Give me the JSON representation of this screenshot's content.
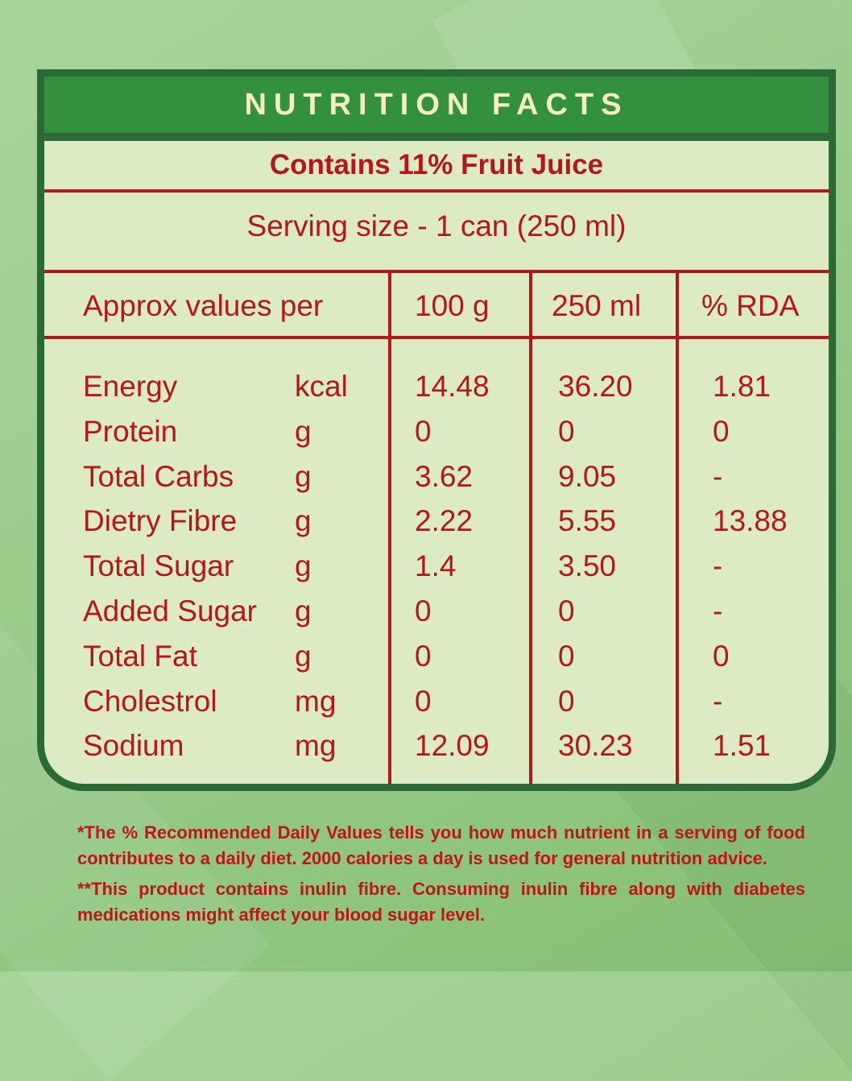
{
  "header": {
    "title": "NUTRITION FACTS"
  },
  "subtitle": "Contains 11% Fruit Juice",
  "serving": "Serving size - 1 can (250 ml)",
  "columns": {
    "label": "Approx values per",
    "c1": "100 g",
    "c2": "250 ml",
    "c3": "% RDA"
  },
  "rows": [
    {
      "name": "Energy",
      "unit": "kcal",
      "per100": "14.48",
      "per250": "36.20",
      "rda": "1.81"
    },
    {
      "name": "Protein",
      "unit": "g",
      "per100": "0",
      "per250": "0",
      "rda": "0"
    },
    {
      "name": "Total Carbs",
      "unit": "g",
      "per100": "3.62",
      "per250": "9.05",
      "rda": "-"
    },
    {
      "name": "Dietry Fibre",
      "unit": "g",
      "per100": "2.22",
      "per250": "5.55",
      "rda": "13.88"
    },
    {
      "name": "Total Sugar",
      "unit": "g",
      "per100": "1.4",
      "per250": "3.50",
      "rda": "-"
    },
    {
      "name": "Added Sugar",
      "unit": "g",
      "per100": "0",
      "per250": "0",
      "rda": "-"
    },
    {
      "name": "Total Fat",
      "unit": "g",
      "per100": "0",
      "per250": "0",
      "rda": "0"
    },
    {
      "name": "Cholestrol",
      "unit": "mg",
      "per100": "0",
      "per250": "0",
      "rda": "-"
    },
    {
      "name": "Sodium",
      "unit": "mg",
      "per100": "12.09",
      "per250": "30.23",
      "rda": "1.51"
    }
  ],
  "notes": {
    "note1": "*The % Recommended Daily Values tells you how much nutrient in a serving of food contributes to a daily diet. 2000 calories a day is used for general nutrition advice.",
    "note2": "**This product contains inulin fibre. Consuming inulin fibre along with diabetes medications might affect your blood sugar level."
  },
  "colors": {
    "header_green": "#33903f",
    "border_green": "#2b6a36",
    "text_red": "#b5161a",
    "panel_bg": "#dcebc4",
    "header_text": "#f3efbf"
  }
}
